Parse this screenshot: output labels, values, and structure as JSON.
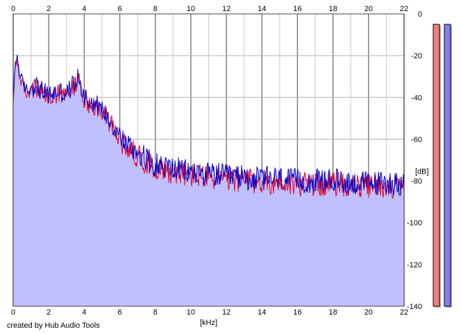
{
  "chart_data": {
    "type": "area",
    "title": "",
    "xlabel": "[kHz]",
    "ylabel": "[dB]",
    "x_ticks": [
      0,
      2,
      4,
      6,
      8,
      10,
      12,
      14,
      16,
      18,
      20,
      22
    ],
    "y_ticks": [
      0,
      -20,
      -40,
      -60,
      -80,
      -100,
      -120,
      -140
    ],
    "xlim": [
      0,
      22
    ],
    "ylim": [
      -140,
      0
    ],
    "grid": true,
    "x_axis_position": "top",
    "y_axis_position": "right",
    "colors": {
      "fill": "#c0c0ff",
      "red_channel": "#e8001a",
      "blue_channel": "#0000cc",
      "grid_major": "#808080",
      "grid_minor": "#c8c8c8",
      "meter_left": "#f08080",
      "meter_right": "#8080f0"
    },
    "series": [
      {
        "x": [
          0,
          0.1,
          0.2,
          0.3,
          0.4,
          0.6,
          0.8,
          1.0,
          1.2,
          1.4,
          1.6,
          1.8,
          2.0,
          2.2,
          2.4,
          2.6,
          2.8,
          3.0,
          3.2,
          3.4,
          3.6,
          3.7,
          3.8,
          4.0,
          4.2,
          4.4,
          4.6,
          4.8,
          5.0,
          5.2,
          5.4,
          5.6,
          5.8,
          6.0,
          6.2,
          6.4,
          6.6,
          6.8,
          7.0,
          7.2,
          7.4,
          7.6,
          7.8,
          8.0,
          8.5,
          9.0,
          9.5,
          10.0,
          10.5,
          11.0,
          11.5,
          12.0,
          12.5,
          13.0,
          13.5,
          14.0,
          14.5,
          15.0,
          15.5,
          16.0,
          16.5,
          17.0,
          17.5,
          18.0,
          18.5,
          19.0,
          19.5,
          20.0,
          20.5,
          21.0,
          21.5,
          22.0
        ],
        "values": [
          -42,
          -25,
          -20,
          -24,
          -30,
          -34,
          -37,
          -36,
          -34,
          -35,
          -37,
          -38,
          -39,
          -38,
          -38,
          -37,
          -38,
          -38,
          -36,
          -33,
          -32,
          -30,
          -35,
          -39,
          -41,
          -42,
          -43,
          -44,
          -46,
          -48,
          -50,
          -53,
          -56,
          -58,
          -61,
          -62,
          -64,
          -65,
          -66,
          -67,
          -69,
          -70,
          -71,
          -72,
          -73,
          -74,
          -75,
          -76,
          -76,
          -77,
          -77,
          -78,
          -78,
          -78,
          -79,
          -79,
          -79,
          -79,
          -80,
          -80,
          -80,
          -80,
          -80,
          -80,
          -80,
          -81,
          -81,
          -81,
          -81,
          -81,
          -81,
          -81
        ]
      }
    ],
    "meters": [
      {
        "channel": "left",
        "level_db": -5
      },
      {
        "channel": "right",
        "level_db": -5
      }
    ]
  },
  "footer": {
    "credit": "created by Hub Audio Tools"
  }
}
